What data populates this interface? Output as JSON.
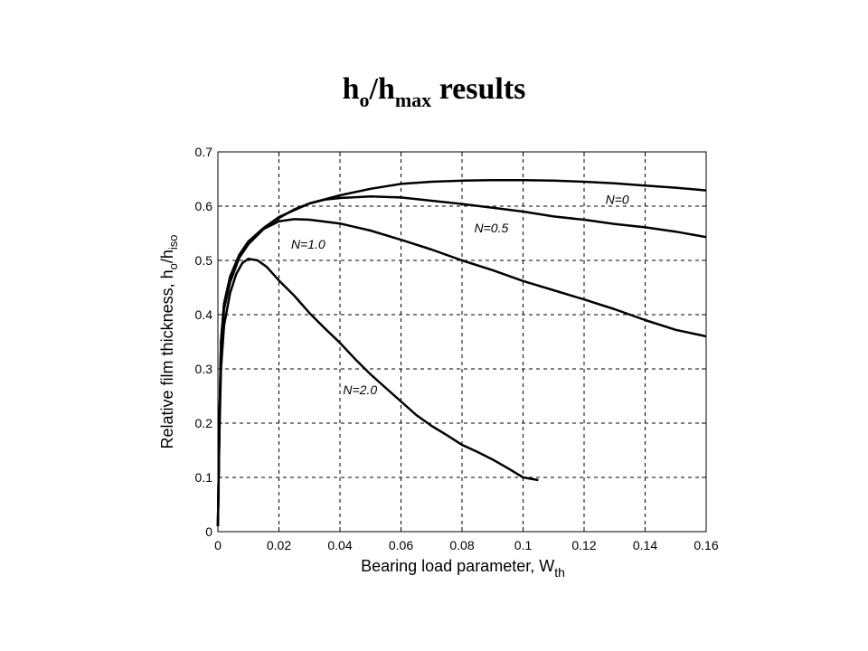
{
  "title": {
    "main": "h",
    "sub1": "o",
    "slash": "/h",
    "sub2": "max",
    "rest": " results"
  },
  "chart_data": {
    "type": "line",
    "xlabel": "Bearing load parameter, W",
    "xlabel_sub": "th",
    "ylabel": "Relative film thickness, h",
    "ylabel_sub1": "o",
    "ylabel_mid": "/h",
    "ylabel_sub2": "iso",
    "xlim": [
      0,
      0.16
    ],
    "ylim": [
      0,
      0.7
    ],
    "xticks": [
      0,
      0.02,
      0.04,
      0.06,
      0.08,
      0.1,
      0.12,
      0.14,
      0.16
    ],
    "xtick_labels": [
      "0",
      "0.02",
      "0.04",
      "0.06",
      "0.08",
      "0.1",
      "0.12",
      "0.14",
      "0.16"
    ],
    "yticks": [
      0,
      0.1,
      0.2,
      0.3,
      0.4,
      0.5,
      0.6,
      0.7
    ],
    "ytick_labels": [
      "0",
      "0.1",
      "0.2",
      "0.3",
      "0.4",
      "0.5",
      "0.6",
      "0.7"
    ],
    "grid": true,
    "series": [
      {
        "name": "N=0",
        "label_at": [
          0.127,
          0.604
        ],
        "points": [
          [
            0,
            0.01
          ],
          [
            0.0005,
            0.2
          ],
          [
            0.001,
            0.35
          ],
          [
            0.002,
            0.42
          ],
          [
            0.004,
            0.47
          ],
          [
            0.007,
            0.51
          ],
          [
            0.01,
            0.535
          ],
          [
            0.015,
            0.56
          ],
          [
            0.02,
            0.58
          ],
          [
            0.03,
            0.605
          ],
          [
            0.04,
            0.62
          ],
          [
            0.05,
            0.632
          ],
          [
            0.06,
            0.641
          ],
          [
            0.07,
            0.645
          ],
          [
            0.08,
            0.647
          ],
          [
            0.09,
            0.648
          ],
          [
            0.1,
            0.648
          ],
          [
            0.11,
            0.647
          ],
          [
            0.12,
            0.645
          ],
          [
            0.13,
            0.642
          ],
          [
            0.14,
            0.638
          ],
          [
            0.15,
            0.634
          ],
          [
            0.16,
            0.629
          ]
        ]
      },
      {
        "name": "N=0.5",
        "label_at": [
          0.084,
          0.552
        ],
        "points": [
          [
            0,
            0.01
          ],
          [
            0.0005,
            0.2
          ],
          [
            0.001,
            0.35
          ],
          [
            0.002,
            0.42
          ],
          [
            0.004,
            0.47
          ],
          [
            0.007,
            0.51
          ],
          [
            0.01,
            0.535
          ],
          [
            0.015,
            0.558
          ],
          [
            0.02,
            0.578
          ],
          [
            0.025,
            0.594
          ],
          [
            0.03,
            0.605
          ],
          [
            0.035,
            0.612
          ],
          [
            0.04,
            0.615
          ],
          [
            0.05,
            0.618
          ],
          [
            0.06,
            0.616
          ],
          [
            0.07,
            0.61
          ],
          [
            0.08,
            0.604
          ],
          [
            0.09,
            0.597
          ],
          [
            0.1,
            0.59
          ],
          [
            0.11,
            0.581
          ],
          [
            0.12,
            0.575
          ],
          [
            0.13,
            0.567
          ],
          [
            0.14,
            0.561
          ],
          [
            0.15,
            0.553
          ],
          [
            0.16,
            0.543
          ]
        ]
      },
      {
        "name": "N=1.0",
        "label_at": [
          0.024,
          0.522
        ],
        "points": [
          [
            0,
            0.01
          ],
          [
            0.0005,
            0.2
          ],
          [
            0.001,
            0.34
          ],
          [
            0.002,
            0.41
          ],
          [
            0.004,
            0.46
          ],
          [
            0.007,
            0.505
          ],
          [
            0.01,
            0.53
          ],
          [
            0.015,
            0.558
          ],
          [
            0.02,
            0.572
          ],
          [
            0.025,
            0.576
          ],
          [
            0.03,
            0.575
          ],
          [
            0.04,
            0.568
          ],
          [
            0.05,
            0.555
          ],
          [
            0.06,
            0.538
          ],
          [
            0.07,
            0.52
          ],
          [
            0.08,
            0.5
          ],
          [
            0.09,
            0.482
          ],
          [
            0.1,
            0.462
          ],
          [
            0.11,
            0.445
          ],
          [
            0.12,
            0.428
          ],
          [
            0.13,
            0.41
          ],
          [
            0.14,
            0.39
          ],
          [
            0.15,
            0.372
          ],
          [
            0.16,
            0.36
          ]
        ]
      },
      {
        "name": "N=2.0",
        "label_at": [
          0.041,
          0.253
        ],
        "points": [
          [
            0,
            0.01
          ],
          [
            0.0005,
            0.18
          ],
          [
            0.001,
            0.3
          ],
          [
            0.002,
            0.38
          ],
          [
            0.004,
            0.44
          ],
          [
            0.006,
            0.475
          ],
          [
            0.008,
            0.495
          ],
          [
            0.01,
            0.503
          ],
          [
            0.013,
            0.5
          ],
          [
            0.016,
            0.488
          ],
          [
            0.02,
            0.463
          ],
          [
            0.025,
            0.435
          ],
          [
            0.03,
            0.403
          ],
          [
            0.035,
            0.375
          ],
          [
            0.04,
            0.348
          ],
          [
            0.045,
            0.318
          ],
          [
            0.05,
            0.29
          ],
          [
            0.055,
            0.265
          ],
          [
            0.06,
            0.24
          ],
          [
            0.065,
            0.215
          ],
          [
            0.07,
            0.195
          ],
          [
            0.075,
            0.178
          ],
          [
            0.08,
            0.16
          ],
          [
            0.085,
            0.147
          ],
          [
            0.09,
            0.133
          ],
          [
            0.095,
            0.117
          ],
          [
            0.1,
            0.1
          ],
          [
            0.105,
            0.095
          ]
        ]
      }
    ]
  }
}
